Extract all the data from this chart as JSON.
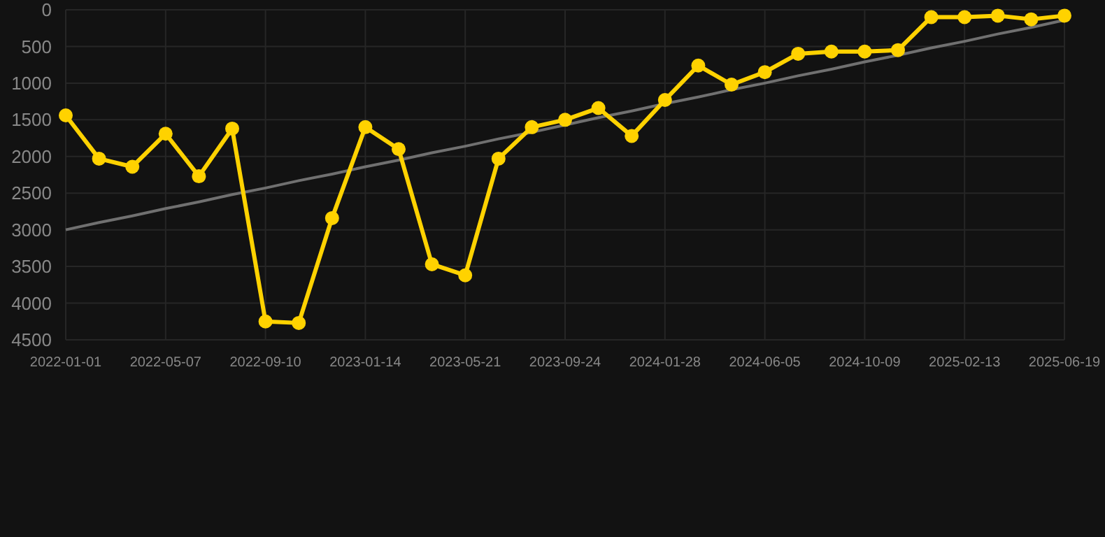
{
  "chart_data": {
    "type": "line",
    "categories": [
      "2022-01-01",
      null,
      null,
      "2022-05-07",
      null,
      null,
      "2022-09-10",
      null,
      null,
      "2023-01-14",
      null,
      null,
      "2023-05-21",
      null,
      null,
      "2023-09-24",
      null,
      null,
      "2024-01-28",
      null,
      null,
      "2024-06-05",
      null,
      null,
      "2024-10-09",
      null,
      null,
      "2025-02-13",
      null,
      null,
      "2025-06-19"
    ],
    "series": [
      {
        "color": "#ffd200",
        "marker": "circle",
        "values": [
          1440,
          2030,
          2140,
          1690,
          2270,
          1620,
          4250,
          4270,
          2840,
          1600,
          1900,
          3470,
          3620,
          2030,
          1600,
          1500,
          1340,
          1720,
          1230,
          760,
          1020,
          850,
          600,
          570,
          570,
          550,
          100,
          100,
          80,
          130,
          80
        ]
      },
      {
        "color": "#707070",
        "marker": "none",
        "values": [
          3000,
          2900,
          2810,
          2710,
          2620,
          2520,
          2430,
          2330,
          2240,
          2140,
          2050,
          1950,
          1860,
          1760,
          1670,
          1570,
          1470,
          1380,
          1280,
          1190,
          1090,
          1000,
          900,
          810,
          710,
          620,
          520,
          430,
          330,
          240,
          140
        ]
      }
    ],
    "ylim": [
      4500,
      0
    ],
    "yticks": [
      0,
      500,
      1000,
      1500,
      2000,
      2500,
      3000,
      3500,
      4000,
      4500
    ],
    "grid": true,
    "line_style": "solid"
  }
}
